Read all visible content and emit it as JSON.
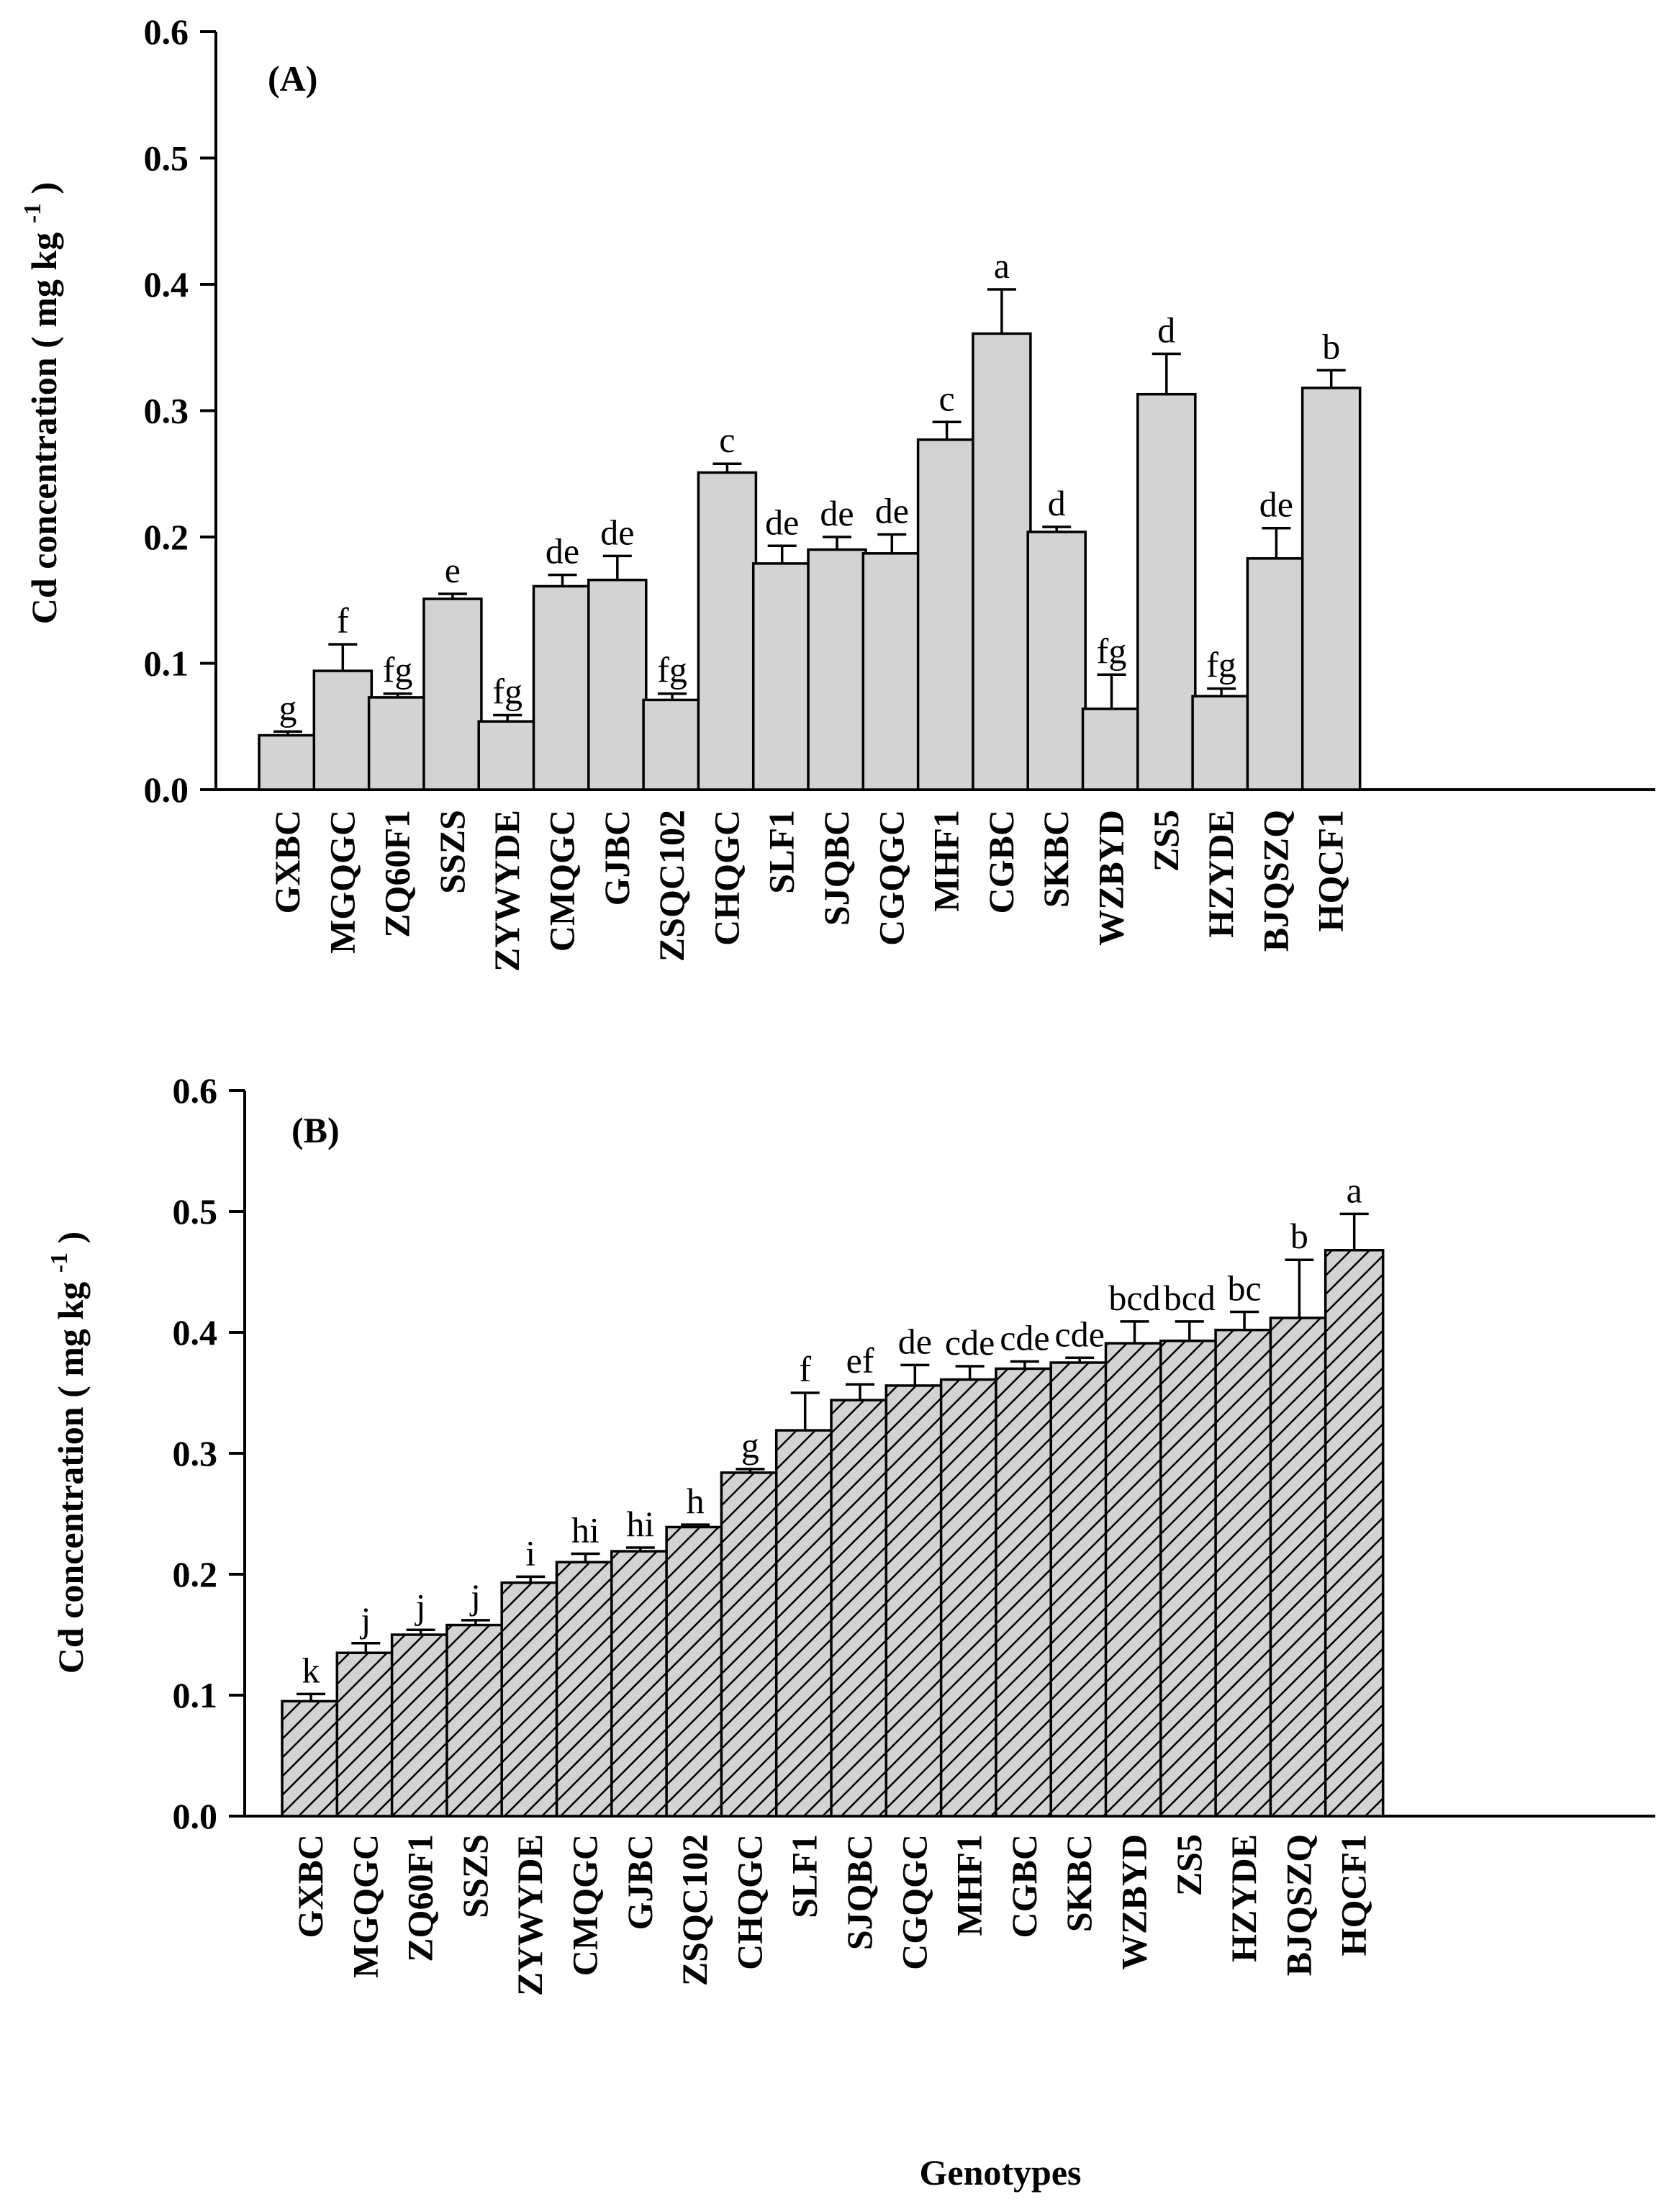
{
  "chart_data": [
    {
      "type": "bar",
      "panel_label": "(A)",
      "ylabel": "Cd concentration ( mg kg",
      "ylabel_sup": "-1",
      "ylabel_end": ")",
      "ylim": [
        0,
        0.6
      ],
      "yticks": [
        "0.0",
        "0.1",
        "0.2",
        "0.3",
        "0.4",
        "0.5",
        "0.6"
      ],
      "pattern": "solid",
      "fill_color": "#d3d3d3",
      "categories": [
        "GXBC",
        "MGQGC",
        "ZQ60F1",
        "SSZS",
        "ZYWYDE",
        "CMQGC",
        "GJBC",
        "ZSQC102",
        "CHQGC",
        "SLF1",
        "SJQBC",
        "CGQGC",
        "MHF1",
        "CGBC",
        "SKBC",
        "WZBYD",
        "ZS5",
        "HZYDE",
        "BJQSZQ",
        "HQCF1"
      ],
      "values": [
        0.043,
        0.094,
        0.073,
        0.151,
        0.054,
        0.161,
        0.166,
        0.071,
        0.251,
        0.179,
        0.19,
        0.187,
        0.277,
        0.361,
        0.204,
        0.064,
        0.313,
        0.074,
        0.183,
        0.318
      ],
      "errors": [
        0.003,
        0.021,
        0.003,
        0.004,
        0.005,
        0.009,
        0.019,
        0.005,
        0.007,
        0.014,
        0.01,
        0.015,
        0.014,
        0.035,
        0.004,
        0.027,
        0.032,
        0.006,
        0.024,
        0.014
      ],
      "letters": [
        "g",
        "f",
        "fg",
        "e",
        "fg",
        "de",
        "de",
        "fg",
        "c",
        "de",
        "de",
        "de",
        "c",
        "a",
        "d",
        "fg",
        "d",
        "fg",
        "de",
        "b"
      ]
    },
    {
      "type": "bar",
      "panel_label": "(B)",
      "ylabel": "Cd concentration ( mg kg",
      "ylabel_sup": "-1",
      "ylabel_end": ")",
      "xlabel": "Genotypes",
      "ylim": [
        0,
        0.6
      ],
      "yticks": [
        "0.0",
        "0.1",
        "0.2",
        "0.3",
        "0.4",
        "0.5",
        "0.6"
      ],
      "pattern": "hatched",
      "fill_color": "#d3d3d3",
      "categories": [
        "GXBC",
        "MGQGC",
        "ZQ60F1",
        "SSZS",
        "ZYWYDE",
        "CMQGC",
        "GJBC",
        "ZSQC102",
        "CHQGC",
        "SLF1",
        "SJQBC",
        "CGQGC",
        "MHF1",
        "CGBC",
        "SKBC",
        "WZBYD",
        "ZS5",
        "HZYDE",
        "BJQSZQ",
        "HQCF1"
      ],
      "values": [
        0.095,
        0.135,
        0.15,
        0.158,
        0.193,
        0.21,
        0.219,
        0.239,
        0.284,
        0.319,
        0.344,
        0.356,
        0.361,
        0.37,
        0.375,
        0.391,
        0.393,
        0.402,
        0.412,
        0.468
      ],
      "errors": [
        0.006,
        0.008,
        0.004,
        0.004,
        0.005,
        0.007,
        0.003,
        0.002,
        0.003,
        0.031,
        0.013,
        0.017,
        0.011,
        0.006,
        0.004,
        0.018,
        0.016,
        0.015,
        0.048,
        0.03
      ],
      "letters": [
        "k",
        "j",
        "j",
        "j",
        "i",
        "hi",
        "hi",
        "h",
        "g",
        "f",
        "ef",
        "de",
        "cde",
        "cde",
        "cde",
        "bcd",
        "bcd",
        "bc",
        "b",
        "a"
      ]
    }
  ]
}
